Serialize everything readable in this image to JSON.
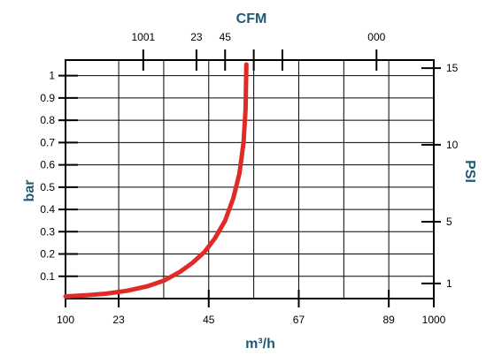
{
  "chart_data": {
    "type": "line",
    "title": "",
    "xlabel": "m³/h",
    "ylabel": "bar",
    "x2label": "CFM",
    "y2label": "PSI",
    "xlim": [
      100,
      1000
    ],
    "ylim": [
      0,
      1.07
    ],
    "x_ticks": [
      {
        "value": 100,
        "label": "100"
      },
      {
        "value": 230,
        "label": "23"
      },
      {
        "value": 450,
        "label": "45"
      },
      {
        "value": 670,
        "label": "67"
      },
      {
        "value": 890,
        "label": "89"
      },
      {
        "value": 1000,
        "label": "1000"
      }
    ],
    "x_gridlines": [
      230,
      340,
      450,
      560,
      670,
      780,
      890
    ],
    "top_ticks": [
      {
        "value": 290,
        "label": "1001"
      },
      {
        "value": 420,
        "label": "23"
      },
      {
        "value": 490,
        "label": "45"
      },
      {
        "value": 560,
        "label": ""
      },
      {
        "value": 630,
        "label": ""
      },
      {
        "value": 860,
        "label": "000"
      }
    ],
    "y_ticks": [
      {
        "value": 0.1,
        "label": "0.1"
      },
      {
        "value": 0.2,
        "label": "0.2"
      },
      {
        "value": 0.3,
        "label": "0.3"
      },
      {
        "value": 0.4,
        "label": "0.4"
      },
      {
        "value": 0.5,
        "label": "0.5"
      },
      {
        "value": 0.6,
        "label": "0.6"
      },
      {
        "value": 0.7,
        "label": "0.7"
      },
      {
        "value": 0.8,
        "label": "0.8"
      },
      {
        "value": 0.9,
        "label": "0.9"
      },
      {
        "value": 1.0,
        "label": "1"
      }
    ],
    "right_ticks": [
      {
        "value": 0.068,
        "label": "1"
      },
      {
        "value": 0.345,
        "label": "5"
      },
      {
        "value": 0.69,
        "label": "10"
      },
      {
        "value": 1.034,
        "label": "15"
      }
    ],
    "grid": true,
    "line_color": "#e02a26",
    "title_color": "#1f5a73",
    "series": [
      {
        "x": [
          100,
          150,
          200,
          250,
          300,
          340,
          380,
          410,
          440,
          465,
          490,
          510,
          525,
          535,
          540,
          542
        ],
        "y": [
          0.01,
          0.015,
          0.022,
          0.035,
          0.055,
          0.08,
          0.12,
          0.16,
          0.21,
          0.27,
          0.35,
          0.45,
          0.56,
          0.7,
          0.85,
          1.05
        ]
      }
    ]
  }
}
